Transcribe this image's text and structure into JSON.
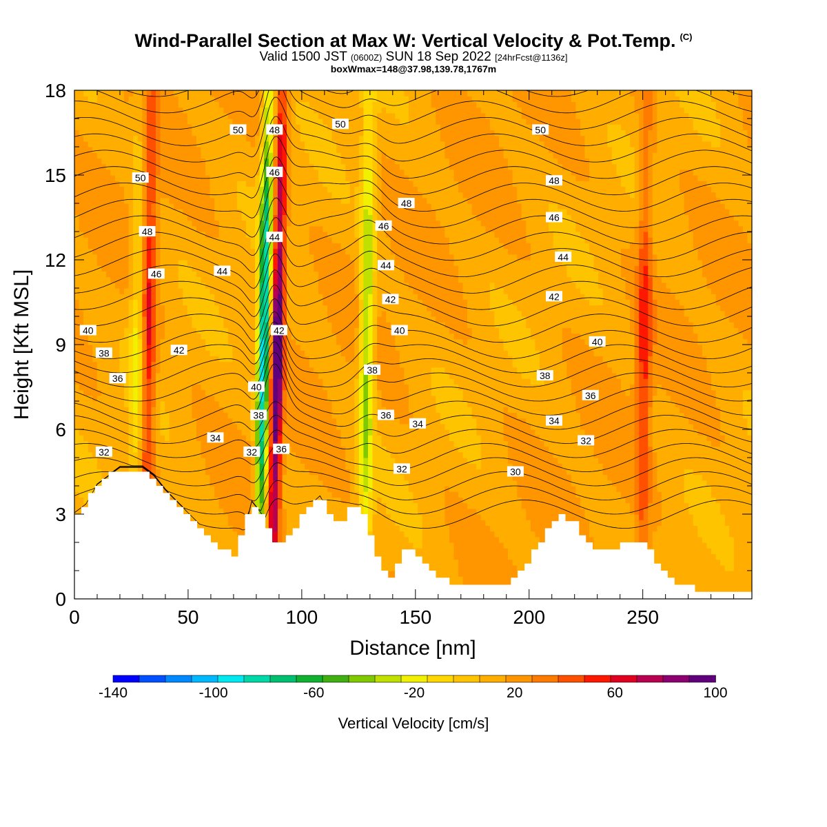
{
  "header": {
    "title": "Wind-Parallel Section at Max W: Vertical Velocity & Pot.Temp.",
    "copyright": "(C)",
    "valid_prefix": "Valid 1500 JST",
    "valid_utc": "(0600Z)",
    "valid_date": "SUN 18 Sep 2022",
    "forecast": "[24hrFcst@1136z]",
    "box_info": "boxWmax=148@37.98,139.78,1767m"
  },
  "colorbar": {
    "label": "Vertical Velocity [cm/s]",
    "tick_labels": [
      "-140",
      "-100",
      "-60",
      "-20",
      "20",
      "60",
      "100"
    ],
    "colors": [
      "#0000ff",
      "#0050ff",
      "#0088ff",
      "#00b8ff",
      "#00e8f0",
      "#00d8a8",
      "#00c070",
      "#10b030",
      "#40b010",
      "#80c800",
      "#c0e000",
      "#f0f000",
      "#ffd800",
      "#ffc400",
      "#ffae00",
      "#ff9600",
      "#ff7a00",
      "#ff5000",
      "#ff1800",
      "#e00020",
      "#b80050",
      "#8c0070",
      "#60007c"
    ]
  },
  "chart_data": {
    "type": "heatmap",
    "title": "Wind-Parallel Section at Max W: Vertical Velocity & Pot.Temp.",
    "xlabel": "Distance [nm]",
    "ylabel": "Height [Kft MSL]",
    "xlim": [
      0,
      298
    ],
    "ylim": [
      0,
      18
    ],
    "x_ticks": [
      0,
      50,
      100,
      150,
      200,
      250
    ],
    "y_ticks": [
      0,
      3,
      6,
      9,
      12,
      15,
      18
    ],
    "color_field": "Vertical Velocity [cm/s]",
    "color_range": [
      -140,
      100
    ],
    "contour_field": "Potential Temperature",
    "contour_levels": [
      30,
      32,
      34,
      36,
      38,
      40,
      42,
      44,
      46,
      48,
      50
    ],
    "terrain_profile": [
      [
        0,
        3.0
      ],
      [
        5,
        3.3
      ],
      [
        10,
        4.0
      ],
      [
        15,
        4.3
      ],
      [
        20,
        4.6
      ],
      [
        30,
        4.6
      ],
      [
        35,
        4.3
      ],
      [
        40,
        3.8
      ],
      [
        45,
        3.4
      ],
      [
        50,
        3.0
      ],
      [
        55,
        2.6
      ],
      [
        60,
        2.2
      ],
      [
        65,
        1.8
      ],
      [
        70,
        1.5
      ],
      [
        75,
        2.4
      ],
      [
        78,
        3.4
      ],
      [
        82,
        3.0
      ],
      [
        85,
        2.6
      ],
      [
        90,
        1.8
      ],
      [
        95,
        2.3
      ],
      [
        100,
        2.9
      ],
      [
        104,
        3.3
      ],
      [
        108,
        3.6
      ],
      [
        112,
        3.0
      ],
      [
        117,
        2.6
      ],
      [
        122,
        3.2
      ],
      [
        126,
        3.3
      ],
      [
        130,
        2.4
      ],
      [
        135,
        1.0
      ],
      [
        140,
        0.8
      ],
      [
        145,
        1.8
      ],
      [
        150,
        1.6
      ],
      [
        155,
        1.3
      ],
      [
        160,
        0.8
      ],
      [
        165,
        0.6
      ],
      [
        170,
        0.4
      ],
      [
        180,
        0.4
      ],
      [
        190,
        0.4
      ],
      [
        195,
        0.8
      ],
      [
        200,
        1.3
      ],
      [
        205,
        2.0
      ],
      [
        210,
        2.8
      ],
      [
        215,
        3.0
      ],
      [
        220,
        2.7
      ],
      [
        225,
        2.0
      ],
      [
        230,
        1.7
      ],
      [
        240,
        1.9
      ],
      [
        245,
        2.0
      ],
      [
        250,
        2.0
      ],
      [
        255,
        1.6
      ],
      [
        260,
        0.8
      ],
      [
        265,
        0.5
      ],
      [
        280,
        0.3
      ],
      [
        298,
        0.3
      ]
    ],
    "velocity_features": [
      {
        "x": 27,
        "w": -30
      },
      {
        "x": 32,
        "w": 50
      },
      {
        "x": 82,
        "w": -120
      },
      {
        "x": 88,
        "w": 100
      },
      {
        "x": 128,
        "w": -60
      },
      {
        "x": 250,
        "w": 40
      }
    ],
    "contour_labels": [
      {
        "text": "50",
        "x": 29,
        "y": 14.9
      },
      {
        "text": "48",
        "x": 32,
        "y": 13.0
      },
      {
        "text": "46",
        "x": 36,
        "y": 11.5
      },
      {
        "text": "44",
        "x": 65,
        "y": 11.6
      },
      {
        "text": "42",
        "x": 46,
        "y": 8.8
      },
      {
        "text": "40",
        "x": 6,
        "y": 9.5
      },
      {
        "text": "38",
        "x": 13,
        "y": 8.7
      },
      {
        "text": "36",
        "x": 19,
        "y": 7.8
      },
      {
        "text": "34",
        "x": 62,
        "y": 5.7
      },
      {
        "text": "32",
        "x": 13,
        "y": 5.2
      },
      {
        "text": "50",
        "x": 72,
        "y": 16.6
      },
      {
        "text": "48",
        "x": 88,
        "y": 16.6
      },
      {
        "text": "46",
        "x": 88,
        "y": 15.1
      },
      {
        "text": "44",
        "x": 88,
        "y": 12.8
      },
      {
        "text": "42",
        "x": 90,
        "y": 9.5
      },
      {
        "text": "40",
        "x": 80,
        "y": 7.5
      },
      {
        "text": "38",
        "x": 81,
        "y": 6.5
      },
      {
        "text": "32",
        "x": 78,
        "y": 5.2
      },
      {
        "text": "36",
        "x": 91,
        "y": 5.3
      },
      {
        "text": "50",
        "x": 117,
        "y": 16.8
      },
      {
        "text": "48",
        "x": 146,
        "y": 14.0
      },
      {
        "text": "46",
        "x": 136,
        "y": 13.2
      },
      {
        "text": "44",
        "x": 137,
        "y": 11.8
      },
      {
        "text": "42",
        "x": 139,
        "y": 10.6
      },
      {
        "text": "40",
        "x": 143,
        "y": 9.5
      },
      {
        "text": "38",
        "x": 131,
        "y": 8.1
      },
      {
        "text": "36",
        "x": 137,
        "y": 6.5
      },
      {
        "text": "34",
        "x": 151,
        "y": 6.2
      },
      {
        "text": "32",
        "x": 144,
        "y": 4.6
      },
      {
        "text": "30",
        "x": 194,
        "y": 4.5
      },
      {
        "text": "50",
        "x": 205,
        "y": 16.6
      },
      {
        "text": "48",
        "x": 211,
        "y": 14.8
      },
      {
        "text": "46",
        "x": 211,
        "y": 13.5
      },
      {
        "text": "44",
        "x": 215,
        "y": 12.1
      },
      {
        "text": "42",
        "x": 211,
        "y": 10.7
      },
      {
        "text": "40",
        "x": 230,
        "y": 9.1
      },
      {
        "text": "38",
        "x": 207,
        "y": 7.9
      },
      {
        "text": "36",
        "x": 227,
        "y": 7.2
      },
      {
        "text": "34",
        "x": 211,
        "y": 6.3
      },
      {
        "text": "32",
        "x": 225,
        "y": 5.6
      }
    ]
  }
}
